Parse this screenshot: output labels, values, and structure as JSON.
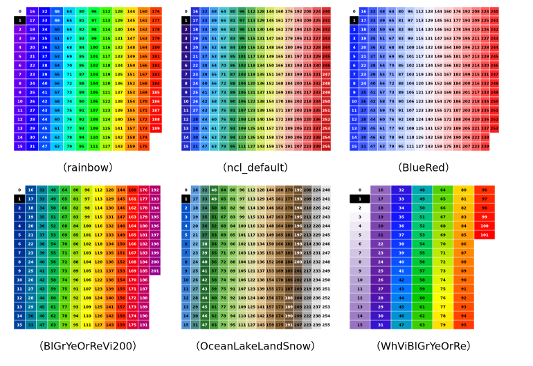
{
  "panels": [
    {
      "label": "（rainbow）",
      "colors": [
        "#7a00e6",
        "#3a00ff",
        "#0000ff",
        "#0080ff",
        "#00ffff",
        "#00ff80",
        "#00ff00",
        "#80ff00",
        "#ffff00",
        "#ffa000",
        "#ff5000",
        "#ff0000"
      ],
      "cells": [
        0,
        1,
        2,
        3,
        4,
        5,
        6,
        7,
        8,
        9,
        10,
        11,
        12,
        13,
        14,
        15,
        16,
        17,
        18,
        19,
        20,
        21,
        22,
        23,
        24,
        25,
        26,
        27,
        28,
        29,
        30,
        31,
        32,
        33,
        34,
        35,
        36,
        37,
        38,
        39,
        40,
        41,
        42,
        43,
        44,
        45,
        46,
        47,
        48,
        49,
        50,
        51,
        52,
        53,
        54,
        55,
        56,
        57,
        58,
        59,
        60,
        61,
        62,
        63,
        64,
        65,
        66,
        67,
        68,
        69,
        70,
        71,
        72,
        73,
        74,
        75,
        76,
        77,
        78,
        79,
        80,
        81,
        82,
        83,
        84,
        85,
        86,
        87,
        88,
        89,
        90,
        91,
        92,
        93,
        94,
        95,
        96,
        97,
        98,
        99,
        100,
        101,
        102,
        103,
        104,
        105,
        106,
        107,
        108,
        109,
        110,
        111,
        112,
        113,
        114,
        115,
        116,
        117,
        118,
        119,
        120,
        121,
        122,
        123,
        124,
        125,
        126,
        127,
        128,
        129,
        130,
        131,
        132,
        133,
        134,
        135,
        136,
        137,
        138,
        139,
        140,
        141,
        142,
        143,
        144,
        145,
        146,
        147,
        148,
        149,
        150,
        151,
        152,
        153,
        154,
        155,
        156,
        157,
        158,
        159,
        160,
        161,
        162,
        163,
        164,
        165,
        166,
        167,
        168,
        169,
        170,
        171,
        172,
        173,
        174,
        175,
        176,
        177,
        178,
        179,
        180,
        181,
        182,
        183,
        184,
        185,
        186,
        187,
        188,
        189
      ]
    },
    {
      "label": "（ncl_default）",
      "colors": [
        "#2c0b6e",
        "#1e3cff",
        "#3c8cff",
        "#46c8e6",
        "#3cb4a0",
        "#2aa050",
        "#78c850",
        "#c8e650",
        "#f0f080",
        "#f0c8a0",
        "#f0a0a0",
        "#f07070",
        "#e63c3c",
        "#c81414"
      ],
      "cells": [
        0,
        1,
        2,
        3,
        4,
        5,
        6,
        7,
        8,
        9,
        10,
        11,
        12,
        13,
        14,
        15,
        16,
        17,
        18,
        19,
        20,
        21,
        22,
        23,
        24,
        25,
        26,
        27,
        28,
        29,
        30,
        31,
        32,
        33,
        34,
        35,
        36,
        37,
        38,
        39,
        40,
        41,
        42,
        43,
        44,
        45,
        46,
        47,
        48,
        49,
        50,
        51,
        52,
        53,
        54,
        55,
        56,
        57,
        58,
        59,
        60,
        61,
        62,
        63,
        64,
        65,
        66,
        67,
        68,
        69,
        70,
        71,
        72,
        73,
        74,
        75,
        76,
        77,
        78,
        79,
        80,
        81,
        82,
        83,
        84,
        85,
        86,
        87,
        88,
        89,
        90,
        91,
        92,
        93,
        94,
        95,
        96,
        97,
        98,
        99,
        100,
        101,
        102,
        103,
        104,
        105,
        106,
        107,
        108,
        109,
        110,
        111,
        112,
        113,
        114,
        115,
        116,
        117,
        118,
        119,
        120,
        121,
        122,
        123,
        124,
        125,
        126,
        127,
        128,
        129,
        130,
        131,
        132,
        133,
        134,
        135,
        136,
        137,
        138,
        139,
        140,
        141,
        142,
        143,
        144,
        145,
        146,
        147,
        148,
        149,
        150,
        151,
        152,
        153,
        154,
        155,
        156,
        157,
        158,
        159,
        160,
        161,
        162,
        163,
        164,
        165,
        166,
        167,
        168,
        169,
        170,
        171,
        172,
        173,
        174,
        175,
        176,
        177,
        178,
        179,
        180,
        181,
        182,
        183,
        184,
        185,
        186,
        187,
        188,
        189,
        190,
        191,
        192,
        193,
        194,
        195,
        196,
        197,
        198,
        199,
        200,
        201,
        202,
        203,
        204,
        205,
        206,
        207,
        208,
        209,
        210,
        211,
        212,
        213,
        214,
        215,
        216,
        217,
        218,
        219,
        220,
        221,
        222,
        223,
        224,
        225,
        226,
        227,
        228,
        229,
        230,
        231,
        232,
        233,
        234,
        235,
        236,
        237,
        238,
        239,
        240,
        241,
        242,
        243,
        244,
        245,
        246,
        247,
        248,
        249,
        250,
        251,
        252,
        253,
        254,
        255
      ]
    },
    {
      "label": "（BlueRed）",
      "colors": [
        "#0a1eff",
        "#5a78ff",
        "#aac3ff",
        "#f0f0ff",
        "#ffc8c8",
        "#ff7878",
        "#ff1e1e"
      ],
      "cells": [
        0,
        1,
        2,
        3,
        4,
        5,
        6,
        7,
        8,
        9,
        10,
        11,
        12,
        13,
        14,
        15,
        16,
        17,
        18,
        19,
        20,
        21,
        22,
        23,
        24,
        25,
        26,
        27,
        28,
        29,
        30,
        31,
        32,
        33,
        34,
        35,
        36,
        37,
        38,
        39,
        40,
        41,
        42,
        43,
        44,
        45,
        46,
        47,
        48,
        49,
        50,
        51,
        52,
        53,
        54,
        55,
        56,
        57,
        58,
        59,
        60,
        61,
        62,
        63,
        64,
        65,
        66,
        67,
        68,
        69,
        70,
        71,
        72,
        73,
        74,
        75,
        76,
        77,
        78,
        79,
        80,
        81,
        82,
        83,
        84,
        85,
        86,
        87,
        88,
        89,
        90,
        91,
        92,
        93,
        94,
        95,
        96,
        97,
        98,
        99,
        100,
        101,
        102,
        103,
        104,
        105,
        106,
        107,
        108,
        109,
        110,
        111,
        112,
        113,
        114,
        115,
        116,
        117,
        118,
        119,
        120,
        121,
        122,
        123,
        124,
        125,
        126,
        127,
        128,
        129,
        130,
        131,
        132,
        133,
        134,
        135,
        136,
        137,
        138,
        139,
        140,
        141,
        142,
        143,
        144,
        145,
        146,
        147,
        148,
        149,
        150,
        151,
        152,
        153,
        154,
        155,
        156,
        157,
        158,
        159,
        160,
        161,
        162,
        163,
        164,
        165,
        166,
        167,
        168,
        169,
        170,
        171,
        172,
        173,
        174,
        175,
        176,
        177,
        178,
        179,
        180,
        181,
        182,
        183,
        184,
        185,
        186,
        187,
        188,
        189,
        190,
        191,
        192,
        193,
        194,
        195,
        196,
        197,
        198,
        199,
        200,
        201,
        202,
        203,
        204,
        205,
        206,
        207,
        208,
        209,
        210,
        211,
        212,
        213,
        214,
        215,
        216,
        217,
        218,
        219,
        220,
        221,
        222,
        223,
        224,
        225,
        226,
        227,
        228,
        229,
        230,
        231,
        232,
        233,
        234,
        235,
        236,
        237,
        238,
        239,
        240,
        241,
        242,
        243,
        244,
        245,
        246,
        247,
        248,
        249,
        250,
        251,
        252,
        253
      ]
    },
    {
      "label": "（BlGrYeOrReVi200）",
      "colors": [
        "#002896",
        "#0050a0",
        "#00a0a0",
        "#00b450",
        "#50d200",
        "#c8e600",
        "#ffff00",
        "#ffb400",
        "#ff6400",
        "#ff0000",
        "#d20050",
        "#96008c"
      ],
      "cells": [
        0,
        1,
        2,
        3,
        4,
        5,
        6,
        7,
        8,
        9,
        10,
        11,
        12,
        13,
        14,
        15,
        16,
        17,
        18,
        19,
        20,
        21,
        22,
        23,
        24,
        25,
        26,
        27,
        28,
        29,
        30,
        31,
        32,
        33,
        34,
        35,
        36,
        37,
        38,
        39,
        40,
        41,
        42,
        43,
        44,
        45,
        46,
        47,
        48,
        49,
        50,
        51,
        52,
        53,
        54,
        55,
        56,
        57,
        58,
        59,
        60,
        61,
        62,
        63,
        64,
        65,
        66,
        67,
        68,
        69,
        70,
        71,
        72,
        73,
        74,
        75,
        76,
        77,
        78,
        79,
        80,
        81,
        82,
        83,
        84,
        85,
        86,
        87,
        88,
        89,
        90,
        91,
        92,
        93,
        94,
        95,
        96,
        97,
        98,
        99,
        100,
        101,
        102,
        103,
        104,
        105,
        106,
        107,
        108,
        109,
        110,
        111,
        112,
        113,
        114,
        115,
        116,
        117,
        118,
        119,
        120,
        121,
        122,
        123,
        124,
        125,
        126,
        127,
        128,
        129,
        130,
        131,
        132,
        133,
        134,
        135,
        136,
        137,
        138,
        139,
        140,
        141,
        142,
        143,
        144,
        145,
        146,
        147,
        148,
        149,
        150,
        151,
        152,
        153,
        154,
        155,
        156,
        157,
        158,
        159,
        160,
        161,
        162,
        163,
        164,
        165,
        166,
        167,
        168,
        169,
        170,
        171,
        172,
        173,
        174,
        175,
        176,
        177,
        178,
        179,
        180,
        181,
        182,
        183,
        184,
        185,
        186,
        187,
        188,
        189,
        190,
        191,
        192,
        193,
        194,
        195,
        196,
        197,
        198,
        199,
        200,
        201
      ]
    },
    {
      "label": "（OceanLakeLandSnow）",
      "colors": [
        "#0050c8",
        "#78b4e6",
        "#1e6428",
        "#3c9632",
        "#82c85a",
        "#b4d278",
        "#dcdca0",
        "#e6c88c",
        "#b48c5a",
        "#8c6432",
        "#644628",
        "#969696",
        "#dcdcdc",
        "#ffffff"
      ],
      "cells": [
        0,
        1,
        2,
        3,
        4,
        5,
        6,
        7,
        8,
        9,
        10,
        11,
        12,
        13,
        14,
        15,
        16,
        17,
        18,
        19,
        20,
        21,
        22,
        23,
        24,
        25,
        26,
        27,
        28,
        29,
        30,
        31,
        32,
        33,
        34,
        35,
        36,
        37,
        38,
        39,
        40,
        41,
        42,
        43,
        44,
        45,
        46,
        47,
        48,
        49,
        50,
        51,
        52,
        53,
        54,
        55,
        56,
        57,
        58,
        59,
        60,
        61,
        62,
        63,
        64,
        65,
        66,
        67,
        68,
        69,
        70,
        71,
        72,
        73,
        74,
        75,
        76,
        77,
        78,
        79,
        80,
        81,
        82,
        83,
        84,
        85,
        86,
        87,
        88,
        89,
        90,
        91,
        92,
        93,
        94,
        95,
        96,
        97,
        98,
        99,
        100,
        101,
        102,
        103,
        104,
        105,
        106,
        107,
        108,
        109,
        110,
        111,
        112,
        113,
        114,
        115,
        116,
        117,
        118,
        119,
        120,
        121,
        122,
        123,
        124,
        125,
        126,
        127,
        128,
        129,
        130,
        131,
        132,
        133,
        134,
        135,
        136,
        137,
        138,
        139,
        140,
        141,
        142,
        143,
        144,
        145,
        146,
        147,
        148,
        149,
        150,
        151,
        152,
        153,
        154,
        155,
        156,
        157,
        158,
        159,
        160,
        161,
        162,
        163,
        164,
        165,
        166,
        167,
        168,
        169,
        170,
        171,
        172,
        173,
        174,
        175,
        176,
        177,
        178,
        179,
        180,
        181,
        182,
        183,
        184,
        185,
        186,
        187,
        188,
        189,
        190,
        191,
        192,
        193,
        194,
        195,
        196,
        197,
        198,
        199,
        200,
        201,
        202,
        203,
        204,
        205,
        206,
        207,
        208,
        209,
        210,
        211,
        212,
        213,
        214,
        215,
        216,
        217,
        218,
        219,
        220,
        221,
        222,
        223,
        224,
        225,
        226,
        227,
        228,
        229,
        230,
        231,
        232,
        233,
        234,
        235,
        236,
        237,
        238,
        239,
        240,
        241,
        242,
        243,
        244,
        245,
        246,
        247,
        248,
        249,
        250,
        251,
        252,
        253,
        254,
        255
      ]
    },
    {
      "label": "（WhViBlGrYeOrRe）",
      "colors": [
        "#ffffff",
        "#b4a0d2",
        "#8250b4",
        "#5a14a0",
        "#1414ff",
        "#0078ff",
        "#00c878",
        "#00c800",
        "#96dc00",
        "#ffff00",
        "#ffa000",
        "#ff5000",
        "#ff0000"
      ],
      "cells": [
        0,
        1,
        2,
        3,
        4,
        5,
        6,
        7,
        8,
        9,
        10,
        11,
        12,
        13,
        14,
        15,
        16,
        17,
        18,
        19,
        20,
        21,
        22,
        23,
        24,
        25,
        26,
        27,
        28,
        29,
        30,
        31,
        32,
        33,
        34,
        35,
        36,
        37,
        38,
        39,
        40,
        41,
        42,
        43,
        44,
        45,
        46,
        47,
        48,
        49,
        50,
        51,
        52,
        53,
        54,
        55,
        56,
        57,
        58,
        59,
        60,
        61,
        62,
        63,
        64,
        65,
        66,
        67,
        68,
        69,
        70,
        71,
        72,
        73,
        74,
        75,
        76,
        77,
        78,
        79,
        80,
        81,
        82,
        83,
        84,
        85,
        86,
        87,
        88,
        89,
        90,
        91,
        92,
        93,
        94,
        95,
        96,
        97,
        98,
        99,
        100,
        101
      ]
    }
  ]
}
